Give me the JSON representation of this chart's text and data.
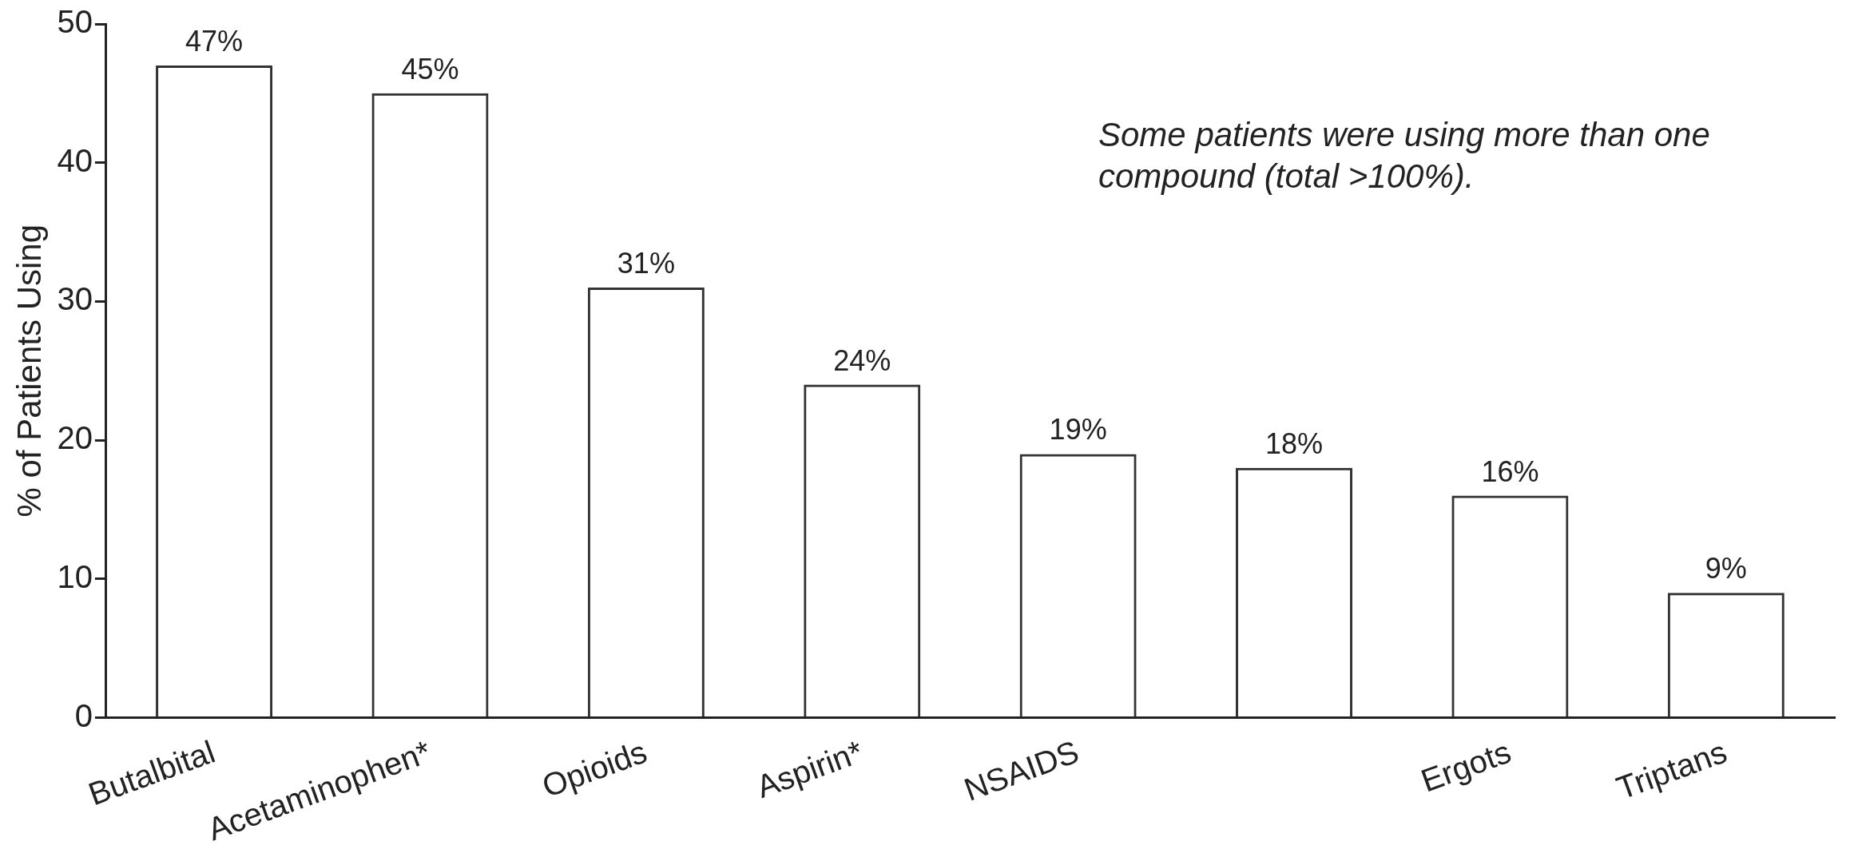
{
  "chart_data": {
    "type": "bar",
    "ylabel": "% of Patients Using",
    "categories": [
      "Butalbital",
      "Acetaminophen*",
      "Opioids",
      "Aspirin*",
      "NSAIDS",
      null,
      "Ergots",
      "Triptans"
    ],
    "values": [
      47,
      45,
      31,
      24,
      19,
      18,
      16,
      9
    ],
    "value_labels": [
      "47%",
      "45%",
      "31%",
      "24%",
      "19%",
      "18%",
      "16%",
      "9%"
    ],
    "color": "#333333",
    "ylim": [
      0,
      50
    ],
    "yticks": [
      0,
      10,
      20,
      30,
      40,
      50
    ],
    "grid": false,
    "legend": false,
    "annotations": [
      "Some patients were using more than one compound (total >100%)."
    ]
  }
}
